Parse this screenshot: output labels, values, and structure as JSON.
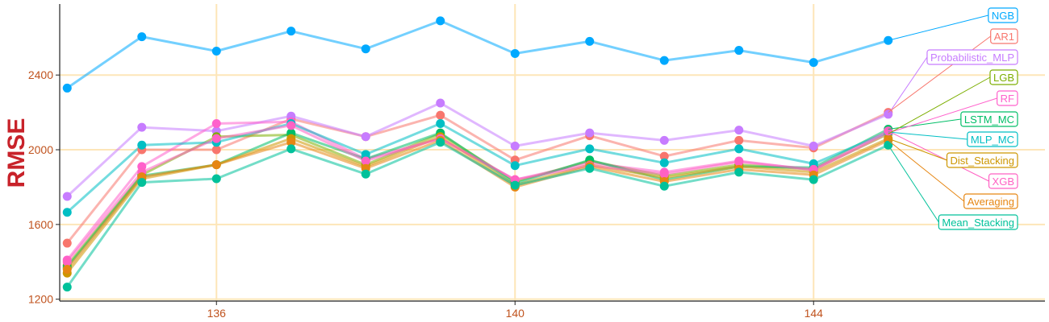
{
  "chart_data": {
    "type": "line",
    "title": "",
    "xlabel": "",
    "ylabel": "RMSE",
    "xlim": [
      133.9,
      147.1
    ],
    "ylim": [
      1190,
      2780
    ],
    "x_ticks": [
      136,
      140,
      144
    ],
    "y_ticks": [
      1200,
      1600,
      2000,
      2400
    ],
    "x_tick_labels": [
      "136",
      "140",
      "144"
    ],
    "y_tick_labels": [
      "1200",
      "1600",
      "2000",
      "2400"
    ],
    "grid": true,
    "legend": "direct labels at right end of lines",
    "x": [
      134,
      135,
      136,
      137,
      138,
      139,
      140,
      141,
      142,
      143,
      144,
      145
    ],
    "series": [
      {
        "name": "NGB",
        "color": "#00A9FF",
        "values": [
          2330,
          2605,
          2528,
          2635,
          2540,
          2690,
          2515,
          2580,
          2478,
          2532,
          2467,
          2585
        ]
      },
      {
        "name": "AR1",
        "color": "#F8766D",
        "values": [
          1500,
          2000,
          2000,
          2165,
          2070,
          2185,
          1945,
          2075,
          1965,
          2050,
          2010,
          2200
        ]
      },
      {
        "name": "Probabilistic_MLP",
        "color": "#C77CFF",
        "values": [
          1750,
          2120,
          2100,
          2180,
          2070,
          2250,
          2020,
          2090,
          2050,
          2105,
          2020,
          2190
        ]
      },
      {
        "name": "LGB",
        "color": "#7CAE00",
        "values": [
          1380,
          1865,
          2070,
          2080,
          1920,
          2085,
          1830,
          1940,
          1860,
          1920,
          1895,
          2085
        ]
      },
      {
        "name": "RF",
        "color": "#FF61CC",
        "values": [
          1410,
          1910,
          2140,
          2150,
          1950,
          2060,
          1840,
          1930,
          1880,
          1940,
          1890,
          2090
        ]
      },
      {
        "name": "LSTM_MC",
        "color": "#00BE67",
        "values": [
          1370,
          1860,
          1920,
          2090,
          1950,
          2090,
          1820,
          1945,
          1840,
          1910,
          1905,
          2110
        ]
      },
      {
        "name": "MLP_MC",
        "color": "#00BFC4",
        "values": [
          1665,
          2025,
          2040,
          2140,
          1975,
          2140,
          1915,
          2005,
          1930,
          2005,
          1925,
          2095
        ]
      },
      {
        "name": "Dist_Stacking",
        "color": "#CD9600",
        "values": [
          1340,
          1845,
          1920,
          2060,
          1910,
          2070,
          1810,
          1920,
          1850,
          1910,
          1880,
          2060
        ]
      },
      {
        "name": "XGB",
        "color": "#FF61C3",
        "values": [
          1400,
          1880,
          2060,
          2130,
          1940,
          2060,
          1840,
          1915,
          1870,
          1935,
          1895,
          2100
        ]
      },
      {
        "name": "Averaging",
        "color": "#E68613",
        "values": [
          1360,
          1855,
          1920,
          2040,
          1900,
          2050,
          1800,
          1910,
          1830,
          1895,
          1865,
          2050
        ]
      },
      {
        "name": "Mean_Stacking",
        "color": "#00C19A",
        "values": [
          1265,
          1825,
          1845,
          2005,
          1870,
          2040,
          1810,
          1900,
          1805,
          1880,
          1840,
          2025
        ]
      }
    ]
  }
}
